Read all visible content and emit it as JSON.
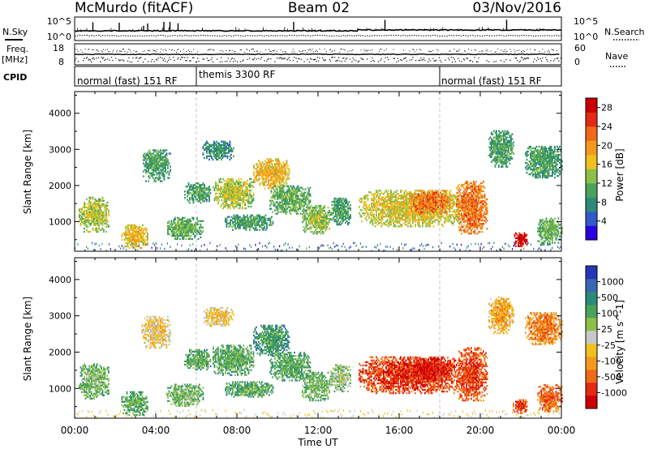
{
  "header": {
    "station": "McMurdo (fitACF)",
    "beam": "Beam 02",
    "date": "03/Nov/2016"
  },
  "aux_panels": {
    "nsky_label": "N.Sky",
    "nsearch_label": "N.Search",
    "freq_label": "Freq.",
    "freq_unit": "[MHz]",
    "nave_label": "Nave",
    "cpid_label": "CPID",
    "noise_ticks": [
      "10^5",
      "10^0"
    ],
    "noise_ticks_right": [
      "10^5",
      "10^0"
    ],
    "freq_ticks": [
      "18",
      "8"
    ],
    "nave_ticks": [
      "60",
      "0"
    ],
    "cpid_segments": [
      {
        "label": "normal (fast) 151 RF",
        "start": 0,
        "end": 6
      },
      {
        "label": "themis 3300 RF",
        "start": 6,
        "end": 18
      },
      {
        "label": "normal (fast) 151 RF",
        "start": 18,
        "end": 24
      }
    ]
  },
  "chart_data": [
    {
      "type": "heatmap",
      "name": "power",
      "xlabel": "",
      "ylabel": "Slant Range [km]",
      "xlim": [
        0,
        24
      ],
      "ylim": [
        180,
        4600
      ],
      "yticks": [
        1000,
        2000,
        3000,
        4000
      ],
      "colorbar": {
        "label": "Power [dB]",
        "ticks": [
          "4",
          "8",
          "12",
          "16",
          "20",
          "24",
          "28"
        ],
        "range": [
          0,
          30
        ],
        "colors": [
          "#2a00e0",
          "#2f5cc8",
          "#2e8a78",
          "#4aa35a",
          "#8cc04a",
          "#f0c020",
          "#f39a1c",
          "#ef6a18",
          "#e42a12",
          "#cc0000"
        ]
      },
      "regions": [
        {
          "t0": 0.2,
          "t1": 1.7,
          "r0": 700,
          "r1": 1650,
          "level": 0.45
        },
        {
          "t0": 2.3,
          "t1": 3.6,
          "r0": 250,
          "r1": 900,
          "level": 0.55
        },
        {
          "t0": 3.3,
          "t1": 4.7,
          "r0": 2100,
          "r1": 3000,
          "level": 0.3
        },
        {
          "t0": 4.5,
          "t1": 6.3,
          "r0": 500,
          "r1": 1100,
          "level": 0.35
        },
        {
          "t0": 5.4,
          "t1": 6.7,
          "r0": 1500,
          "r1": 2050,
          "level": 0.3
        },
        {
          "t0": 6.3,
          "t1": 7.8,
          "r0": 2700,
          "r1": 3200,
          "level": 0.25
        },
        {
          "t0": 6.8,
          "t1": 8.8,
          "r0": 1350,
          "r1": 2200,
          "level": 0.45
        },
        {
          "t0": 7.4,
          "t1": 9.8,
          "r0": 750,
          "r1": 1200,
          "level": 0.3
        },
        {
          "t0": 8.8,
          "t1": 10.6,
          "r0": 1900,
          "r1": 2750,
          "level": 0.55
        },
        {
          "t0": 9.6,
          "t1": 11.6,
          "r0": 1200,
          "r1": 2000,
          "level": 0.35
        },
        {
          "t0": 11.2,
          "t1": 12.6,
          "r0": 650,
          "r1": 1450,
          "level": 0.4
        },
        {
          "t0": 12.6,
          "t1": 13.6,
          "r0": 900,
          "r1": 1650,
          "level": 0.3
        },
        {
          "t0": 14.0,
          "t1": 19.2,
          "r0": 850,
          "r1": 1850,
          "level": 0.5
        },
        {
          "t0": 16.5,
          "t1": 18.5,
          "r0": 1200,
          "r1": 1850,
          "level": 0.7
        },
        {
          "t0": 18.8,
          "t1": 20.3,
          "r0": 650,
          "r1": 2100,
          "level": 0.7
        },
        {
          "t0": 20.4,
          "t1": 21.6,
          "r0": 2500,
          "r1": 3500,
          "level": 0.3
        },
        {
          "t0": 21.6,
          "t1": 22.3,
          "r0": 300,
          "r1": 700,
          "level": 0.95
        },
        {
          "t0": 22.2,
          "t1": 24.0,
          "r0": 2200,
          "r1": 3100,
          "level": 0.3
        },
        {
          "t0": 22.8,
          "t1": 24.0,
          "r0": 350,
          "r1": 1100,
          "level": 0.35
        }
      ]
    },
    {
      "type": "heatmap",
      "name": "velocity",
      "xlabel": "Time UT",
      "ylabel": "Slant Range [km]",
      "xlim": [
        0,
        24
      ],
      "ylim": [
        180,
        4600
      ],
      "xticks": [
        "00:00",
        "04:00",
        "08:00",
        "12:00",
        "16:00",
        "20:00",
        "00:00"
      ],
      "yticks": [
        1000,
        2000,
        3000,
        4000
      ],
      "colorbar": {
        "label": "Velocity [m s^-1]",
        "ticks": [
          "1000",
          "500",
          "100",
          "25",
          "-25",
          "-100",
          "-500",
          "-1000"
        ],
        "colors": [
          "#2636b6",
          "#3a66b4",
          "#2e8a78",
          "#4aa35a",
          "#8cc04a",
          "#c8c8c8",
          "#f0c020",
          "#f39a1c",
          "#ef6a18",
          "#e42a12",
          "#cc0000"
        ]
      },
      "regions": [
        {
          "t0": 0.2,
          "t1": 1.7,
          "r0": 700,
          "r1": 1650,
          "level": 0.35
        },
        {
          "t0": 2.3,
          "t1": 3.6,
          "r0": 250,
          "r1": 900,
          "level": 0.3
        },
        {
          "t0": 3.3,
          "t1": 4.7,
          "r0": 2100,
          "r1": 3000,
          "level": 0.55
        },
        {
          "t0": 4.5,
          "t1": 6.3,
          "r0": 500,
          "r1": 1100,
          "level": 0.35
        },
        {
          "t0": 5.4,
          "t1": 6.7,
          "r0": 1500,
          "r1": 2050,
          "level": 0.3
        },
        {
          "t0": 6.3,
          "t1": 7.8,
          "r0": 2700,
          "r1": 3200,
          "level": 0.55
        },
        {
          "t0": 6.8,
          "t1": 8.8,
          "r0": 1350,
          "r1": 2200,
          "level": 0.3
        },
        {
          "t0": 7.4,
          "t1": 9.8,
          "r0": 750,
          "r1": 1200,
          "level": 0.3
        },
        {
          "t0": 8.8,
          "t1": 10.6,
          "r0": 1900,
          "r1": 2750,
          "level": 0.25
        },
        {
          "t0": 9.6,
          "t1": 11.6,
          "r0": 1200,
          "r1": 2000,
          "level": 0.3
        },
        {
          "t0": 11.2,
          "t1": 12.6,
          "r0": 650,
          "r1": 1450,
          "level": 0.35
        },
        {
          "t0": 12.6,
          "t1": 13.6,
          "r0": 900,
          "r1": 1650,
          "level": 0.4
        },
        {
          "t0": 14.0,
          "t1": 19.2,
          "r0": 850,
          "r1": 1850,
          "level": 0.82
        },
        {
          "t0": 16.5,
          "t1": 18.5,
          "r0": 1200,
          "r1": 1850,
          "level": 0.88
        },
        {
          "t0": 18.8,
          "t1": 20.3,
          "r0": 650,
          "r1": 2100,
          "level": 0.8
        },
        {
          "t0": 20.4,
          "t1": 21.6,
          "r0": 2500,
          "r1": 3500,
          "level": 0.62
        },
        {
          "t0": 21.6,
          "t1": 22.3,
          "r0": 300,
          "r1": 700,
          "level": 0.8
        },
        {
          "t0": 22.2,
          "t1": 24.0,
          "r0": 2200,
          "r1": 3100,
          "level": 0.7
        },
        {
          "t0": 22.8,
          "t1": 24.0,
          "r0": 350,
          "r1": 1100,
          "level": 0.75
        }
      ]
    }
  ]
}
